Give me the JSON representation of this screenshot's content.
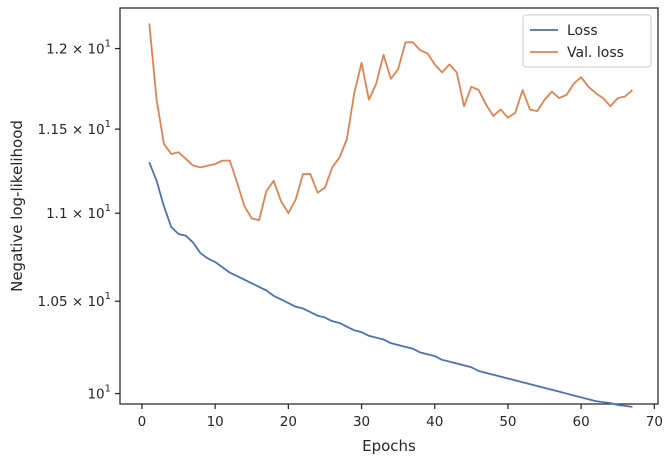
{
  "chart_data": {
    "type": "line",
    "xlabel": "Epochs",
    "ylabel": "Negative log-likelihood",
    "xlim": [
      -3,
      70.5
    ],
    "ylim": [
      9.945,
      12.26
    ],
    "xticks": [
      0,
      10,
      20,
      30,
      40,
      50,
      60,
      70
    ],
    "yticks": [
      {
        "value": 10.0,
        "mantissa": "",
        "base": "10",
        "exp": "1"
      },
      {
        "value": 10.5,
        "mantissa": "1.05 × ",
        "base": "10",
        "exp": "1"
      },
      {
        "value": 11.0,
        "mantissa": "1.1 × ",
        "base": "10",
        "exp": "1"
      },
      {
        "value": 11.5,
        "mantissa": "1.15 × ",
        "base": "10",
        "exp": "1"
      },
      {
        "value": 12.0,
        "mantissa": "1.2 × ",
        "base": "10",
        "exp": "1"
      }
    ],
    "log_scale_y": true,
    "grid": false,
    "legend_position": "top-right",
    "x": [
      1,
      2,
      3,
      4,
      5,
      6,
      7,
      8,
      9,
      10,
      11,
      12,
      13,
      14,
      15,
      16,
      17,
      18,
      19,
      20,
      21,
      22,
      23,
      24,
      25,
      26,
      27,
      28,
      29,
      30,
      31,
      32,
      33,
      34,
      35,
      36,
      37,
      38,
      39,
      40,
      41,
      42,
      43,
      44,
      45,
      46,
      47,
      48,
      49,
      50,
      51,
      52,
      53,
      54,
      55,
      56,
      57,
      58,
      59,
      60,
      61,
      62,
      63,
      64,
      65,
      66,
      67
    ],
    "series": [
      {
        "name": "Loss",
        "color": "#4c72b0",
        "values": [
          11.3,
          11.19,
          11.04,
          10.92,
          10.88,
          10.87,
          10.83,
          10.77,
          10.74,
          10.72,
          10.69,
          10.66,
          10.64,
          10.62,
          10.6,
          10.58,
          10.56,
          10.53,
          10.51,
          10.49,
          10.47,
          10.46,
          10.44,
          10.42,
          10.41,
          10.39,
          10.38,
          10.36,
          10.34,
          10.33,
          10.31,
          10.3,
          10.29,
          10.27,
          10.26,
          10.25,
          10.24,
          10.22,
          10.21,
          10.2,
          10.18,
          10.17,
          10.16,
          10.15,
          10.14,
          10.12,
          10.11,
          10.1,
          10.09,
          10.08,
          10.07,
          10.06,
          10.05,
          10.04,
          10.03,
          10.02,
          10.01,
          10.0,
          9.99,
          9.98,
          9.97,
          9.96,
          9.955,
          9.95,
          9.94,
          9.935,
          9.93
        ]
      },
      {
        "name": "Val. loss",
        "color": "#dd8452",
        "values": [
          12.16,
          11.68,
          11.41,
          11.35,
          11.36,
          11.32,
          11.28,
          11.27,
          11.28,
          11.29,
          11.31,
          11.31,
          11.18,
          11.04,
          10.97,
          10.96,
          11.13,
          11.19,
          11.07,
          11.0,
          11.08,
          11.23,
          11.23,
          11.12,
          11.15,
          11.27,
          11.33,
          11.44,
          11.72,
          11.91,
          11.68,
          11.78,
          11.96,
          11.81,
          11.87,
          12.04,
          12.04,
          11.99,
          11.97,
          11.9,
          11.85,
          11.9,
          11.85,
          11.64,
          11.76,
          11.74,
          11.65,
          11.58,
          11.62,
          11.57,
          11.6,
          11.74,
          11.62,
          11.61,
          11.68,
          11.73,
          11.69,
          11.71,
          11.78,
          11.82,
          11.76,
          11.72,
          11.69,
          11.64,
          11.69,
          11.7,
          11.74
        ]
      }
    ]
  }
}
